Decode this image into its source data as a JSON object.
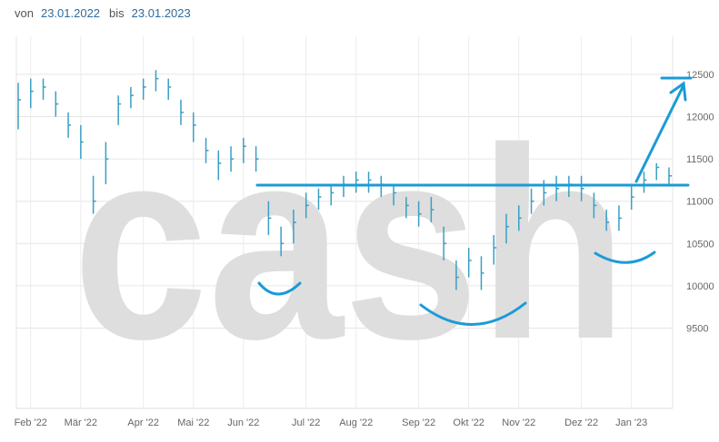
{
  "range": {
    "from_label": "von",
    "from": "23.01.2022",
    "to_label": "bis",
    "to": "23.01.2023"
  },
  "watermark": "cash",
  "chart_data": {
    "type": "ohlc",
    "color": "#3a9fc4",
    "categories": [
      null,
      "Feb '22",
      null,
      null,
      null,
      "Mär '22",
      null,
      null,
      null,
      null,
      "Apr '22",
      null,
      null,
      null,
      "Mai '22",
      null,
      null,
      null,
      "Jun '22",
      null,
      null,
      null,
      null,
      "Jul '22",
      null,
      null,
      null,
      "Aug '22",
      null,
      null,
      null,
      null,
      "Sep '22",
      null,
      null,
      null,
      "Okt '22",
      null,
      null,
      null,
      "Nov '22",
      null,
      null,
      null,
      null,
      "Dez '22",
      null,
      null,
      null,
      "Jan '23",
      null,
      null,
      null
    ],
    "high": [
      12400,
      12450,
      12450,
      12300,
      12050,
      11900,
      11300,
      11700,
      12250,
      12350,
      12450,
      12550,
      12450,
      12200,
      12050,
      11750,
      11600,
      11650,
      11750,
      11650,
      11000,
      10700,
      10900,
      11100,
      11150,
      11200,
      11300,
      11350,
      11350,
      11300,
      11200,
      11050,
      11000,
      11050,
      10700,
      10300,
      10450,
      10350,
      10600,
      10850,
      10950,
      11150,
      11250,
      11300,
      11300,
      11300,
      11100,
      10900,
      10950,
      11200,
      11350,
      11450,
      11400
    ],
    "low": [
      11850,
      12100,
      12200,
      12000,
      11750,
      11500,
      10850,
      11200,
      11900,
      12100,
      12200,
      12300,
      12200,
      11900,
      11700,
      11450,
      11250,
      11350,
      11450,
      11350,
      10600,
      10350,
      10500,
      10800,
      10900,
      10950,
      11050,
      11100,
      11100,
      11050,
      10950,
      10800,
      10700,
      10750,
      10300,
      9950,
      10100,
      9950,
      10250,
      10500,
      10650,
      10850,
      10950,
      11000,
      11050,
      11000,
      10800,
      10650,
      10650,
      10900,
      11100,
      11250,
      11200
    ],
    "close": [
      12200,
      12300,
      12350,
      12150,
      11900,
      11700,
      11000,
      11500,
      12150,
      12250,
      12350,
      12450,
      12350,
      12050,
      11900,
      11600,
      11450,
      11500,
      11650,
      11500,
      10800,
      10500,
      10750,
      10950,
      11050,
      11100,
      11200,
      11250,
      11250,
      11200,
      11100,
      10950,
      10850,
      10900,
      10500,
      10100,
      10300,
      10150,
      10450,
      10700,
      10800,
      11000,
      11100,
      11150,
      11200,
      11150,
      10950,
      10750,
      10800,
      11050,
      11250,
      11400,
      11300
    ],
    "ylim": [
      8550,
      12950
    ],
    "yticks": [
      9500,
      10000,
      10500,
      11000,
      11500,
      12000,
      12500
    ],
    "grid": true
  }
}
